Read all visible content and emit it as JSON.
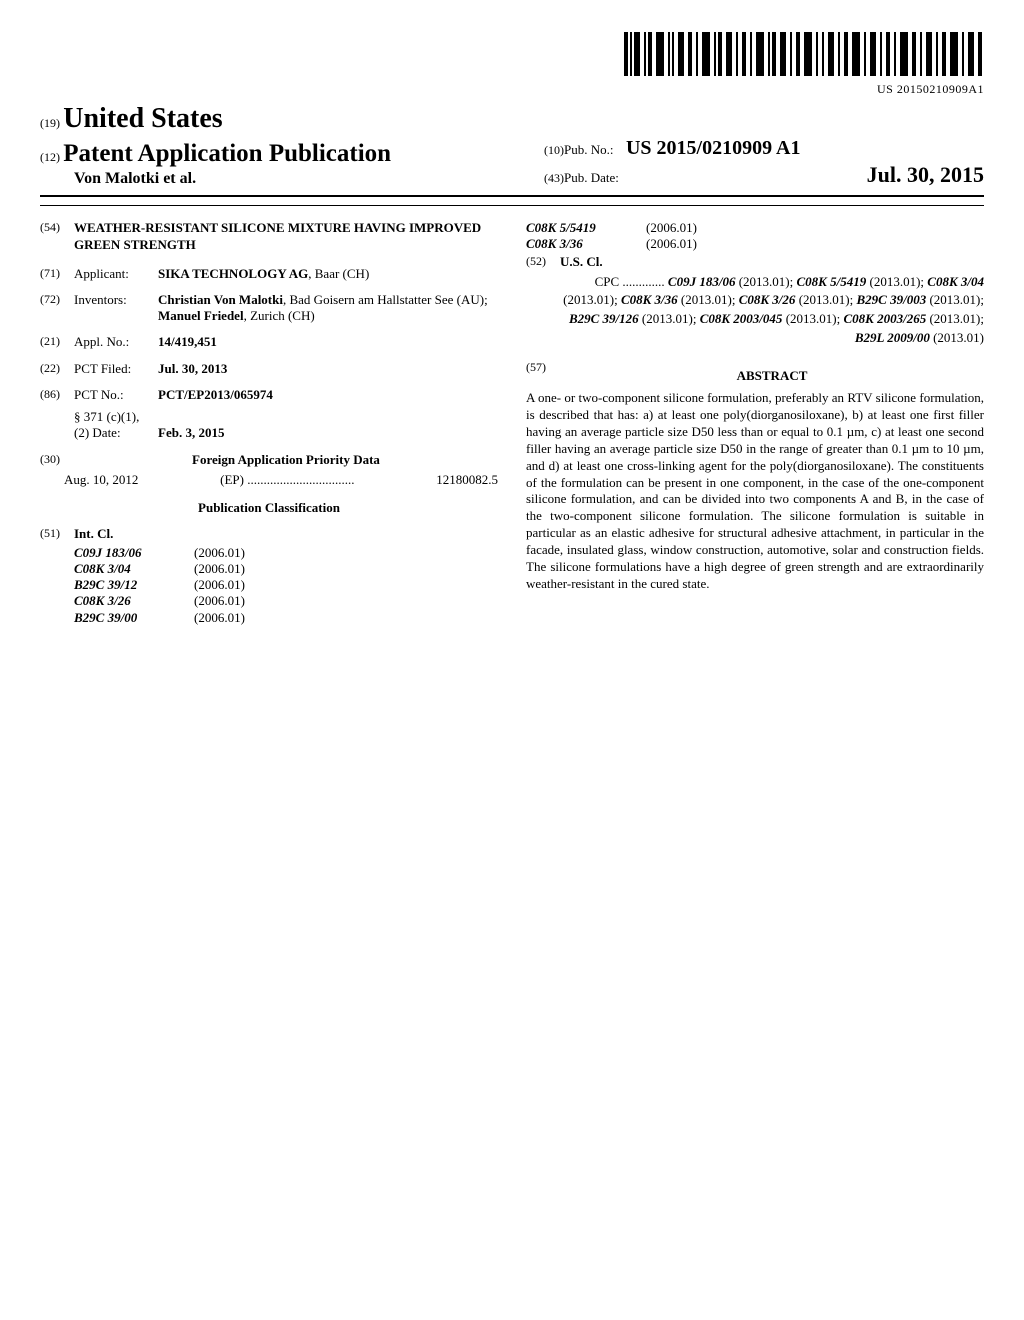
{
  "barcode": {
    "text": "US 20150210909A1"
  },
  "header": {
    "country_prefix": "(19)",
    "country": "United States",
    "pub_type_prefix": "(12)",
    "pub_type": "Patent Application Publication",
    "authors": "Von Malotki et al.",
    "pubno_prefix": "(10)",
    "pubno_label": "Pub. No.:",
    "pubno_value": "US 2015/0210909 A1",
    "pubdate_prefix": "(43)",
    "pubdate_label": "Pub. Date:",
    "pubdate_value": "Jul. 30, 2015"
  },
  "left": {
    "title_code": "(54)",
    "title": "WEATHER-RESISTANT SILICONE MIXTURE HAVING IMPROVED GREEN STRENGTH",
    "applicant_code": "(71)",
    "applicant_label": "Applicant:",
    "applicant_value_bold": "SIKA TECHNOLOGY AG",
    "applicant_value_rest": ", Baar (CH)",
    "inventors_code": "(72)",
    "inventors_label": "Inventors:",
    "inventors_html": "Christian Von Malotki|, Bad Goisern am Hallstatter See (AU); |Manuel Friedel|, Zurich (CH)",
    "applno_code": "(21)",
    "applno_label": "Appl. No.:",
    "applno_value": "14/419,451",
    "pctfiled_code": "(22)",
    "pctfiled_label": "PCT Filed:",
    "pctfiled_value": "Jul. 30, 2013",
    "pctno_code": "(86)",
    "pctno_label": "PCT No.:",
    "pctno_value": "PCT/EP2013/065974",
    "s371_label": "§ 371 (c)(1),",
    "s371_date_label": "(2) Date:",
    "s371_date_value": "Feb. 3, 2015",
    "priority_code": "(30)",
    "priority_heading": "Foreign Application Priority Data",
    "priority_date": "Aug. 10, 2012",
    "priority_country": "(EP)",
    "priority_dots": ".................................",
    "priority_num": "12180082.5",
    "pubclass_heading": "Publication Classification",
    "intcl_code": "(51)",
    "intcl_label": "Int. Cl.",
    "intcl_rows": [
      {
        "code": "C09J 183/06",
        "year": "(2006.01)"
      },
      {
        "code": "C08K 3/04",
        "year": "(2006.01)"
      },
      {
        "code": "B29C 39/12",
        "year": "(2006.01)"
      },
      {
        "code": "C08K 3/26",
        "year": "(2006.01)"
      },
      {
        "code": "B29C 39/00",
        "year": "(2006.01)"
      }
    ]
  },
  "right": {
    "intcl_cont": [
      {
        "code": "C08K 5/5419",
        "year": "(2006.01)"
      },
      {
        "code": "C08K 3/36",
        "year": "(2006.01)"
      }
    ],
    "uscl_code": "(52)",
    "uscl_label": "U.S. Cl.",
    "cpc_prefix": "CPC .............",
    "cpc_items": [
      {
        "c": "C09J 183/06",
        "y": "(2013.01)"
      },
      {
        "c": "C08K 5/5419",
        "y": "(2013.01)"
      },
      {
        "c": "C08K 3/04",
        "y": "(2013.01)"
      },
      {
        "c": "C08K 3/36",
        "y": "(2013.01)"
      },
      {
        "c": "C08K 3/26",
        "y": "(2013.01)"
      },
      {
        "c": "B29C 39/003",
        "y": "(2013.01)"
      },
      {
        "c": "B29C 39/126",
        "y": "(2013.01)"
      },
      {
        "c": "C08K 2003/045",
        "y": "(2013.01)"
      },
      {
        "c": "C08K 2003/265",
        "y": "(2013.01)"
      },
      {
        "c": "B29L 2009/00",
        "y": "(2013.01)"
      }
    ],
    "abstract_code": "(57)",
    "abstract_heading": "ABSTRACT",
    "abstract_text": "A one- or two-component silicone formulation, preferably an RTV silicone formulation, is described that has: a) at least one poly(diorganosiloxane), b) at least one first filler having an average particle size D50 less than or equal to 0.1 µm, c) at least one second filler having an average particle size D50 in the range of greater than 0.1 µm to 10 µm, and d) at least one cross-linking agent for the poly(diorganosiloxane). The constituents of the formulation can be present in one component, in the case of the one-component silicone formulation, and can be divided into two components A and B, in the case of the two-component silicone formulation. The silicone formulation is suitable in particular as an elastic adhesive for structural adhesive attachment, in particular in the facade, insulated glass, window construction, automotive, solar and construction fields. The silicone formulations have a high degree of green strength and are extraordinarily weather-resistant in the cured state."
  }
}
